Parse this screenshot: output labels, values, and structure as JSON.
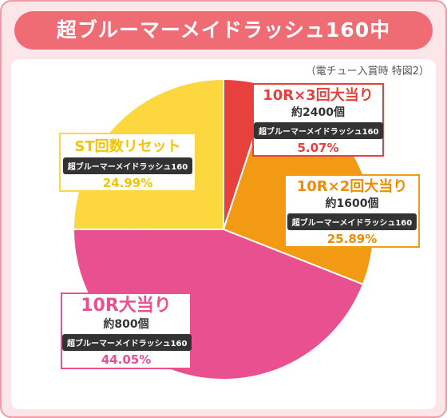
{
  "header": {
    "title": "超ブルーマーメイドラッシュ160中",
    "note": "（電チュー入賞時 特図2）"
  },
  "colors": {
    "frame_bg": "#fde6ea",
    "frame_border": "#f29aa8",
    "title_bg": "#ef6c75"
  },
  "chart_data": {
    "type": "pie",
    "start_angle_deg": 0,
    "direction": "clockwise",
    "slices": [
      {
        "label": "10R×3回大当り",
        "count": "約2400個",
        "machine": "超ブルーマーメイドラッシュ160",
        "percent_text": "5.07%",
        "value": 5.07,
        "color": "#e8403c",
        "text_color": "#e8403c"
      },
      {
        "label": "10R×2回大当り",
        "count": "約1600個",
        "machine": "超ブルーマーメイドラッシュ160",
        "percent_text": "25.89%",
        "value": 25.89,
        "color": "#f39a14",
        "text_color": "#f08c00"
      },
      {
        "label": "10R大当り",
        "count": "約800個",
        "machine": "超ブルーマーメイドラッシュ160",
        "percent_text": "44.05%",
        "value": 44.05,
        "color": "#e8508f",
        "text_color": "#e8508f"
      },
      {
        "label": "ST回数リセット",
        "count": "",
        "machine": "超ブルーマーメイドラッシュ160",
        "percent_text": "24.99%",
        "value": 24.99,
        "color": "#fcd73e",
        "text_color": "#f5c400"
      }
    ]
  }
}
